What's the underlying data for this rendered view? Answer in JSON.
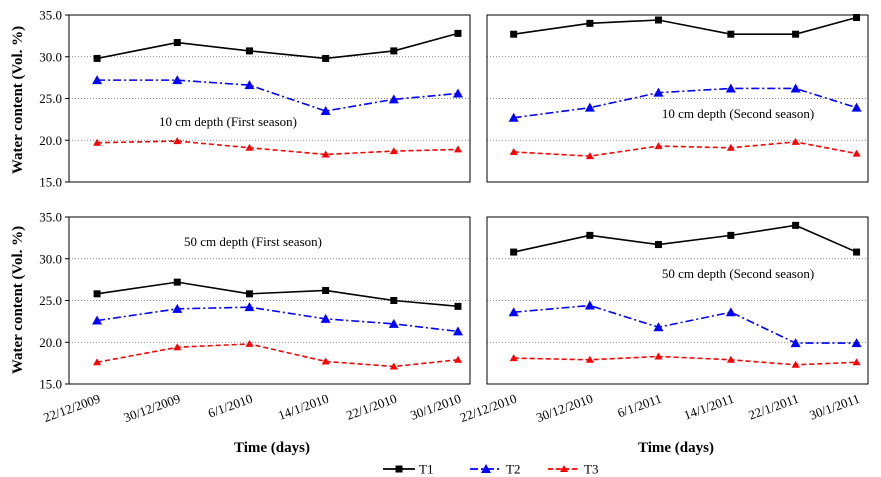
{
  "chart_data": [
    {
      "type": "line",
      "annotation": "10 cm depth (First season)",
      "ylim": [
        15,
        35
      ],
      "yticks": [
        "15.0",
        "20.0",
        "25.0",
        "30.0",
        "35.0"
      ],
      "x": [
        "22/12/2009",
        "30/12/2009",
        "6/1/2010",
        "14/1/2010",
        "22/1/2010",
        "30/1/2010"
      ],
      "series": [
        {
          "name": "T1",
          "values": [
            29.8,
            31.7,
            30.7,
            29.8,
            30.7,
            32.8
          ]
        },
        {
          "name": "T2",
          "values": [
            27.2,
            27.2,
            26.6,
            23.5,
            24.9,
            25.6
          ]
        },
        {
          "name": "T3",
          "values": [
            19.7,
            19.9,
            19.1,
            18.3,
            18.7,
            18.9
          ]
        }
      ]
    },
    {
      "type": "line",
      "annotation": "10 cm depth (Second season)",
      "ylim": [
        15,
        35
      ],
      "x": [
        "22/12/2010",
        "30/12/2010",
        "6/1/2011",
        "14/1/2011",
        "22/1/2011",
        "30/1/2011"
      ],
      "series": [
        {
          "name": "T1",
          "values": [
            32.7,
            34.0,
            34.4,
            32.7,
            32.7,
            34.7
          ]
        },
        {
          "name": "T2",
          "values": [
            22.7,
            23.9,
            25.7,
            26.2,
            26.2,
            23.9
          ]
        },
        {
          "name": "T3",
          "values": [
            18.6,
            18.1,
            19.3,
            19.1,
            19.8,
            18.4
          ]
        }
      ]
    },
    {
      "type": "line",
      "annotation": "50 cm depth (First season)",
      "ylim": [
        15,
        35
      ],
      "yticks": [
        "15.0",
        "20.0",
        "25.0",
        "30.0",
        "35.0"
      ],
      "x": [
        "22/12/2009",
        "30/12/2009",
        "6/1/2010",
        "14/1/2010",
        "22/1/2010",
        "30/1/2010"
      ],
      "series": [
        {
          "name": "T1",
          "values": [
            25.8,
            27.2,
            25.8,
            26.2,
            25.0,
            24.3
          ]
        },
        {
          "name": "T2",
          "values": [
            22.6,
            24.0,
            24.2,
            22.8,
            22.2,
            21.3
          ]
        },
        {
          "name": "T3",
          "values": [
            17.6,
            19.4,
            19.8,
            17.7,
            17.1,
            17.9
          ]
        }
      ]
    },
    {
      "type": "line",
      "annotation": "50 cm depth (Second season)",
      "ylim": [
        15,
        35
      ],
      "x": [
        "22/12/2010",
        "30/12/2010",
        "6/1/2011",
        "14/1/2011",
        "22/1/2011",
        "30/1/2011"
      ],
      "series": [
        {
          "name": "T1",
          "values": [
            30.8,
            32.8,
            31.7,
            32.8,
            34.0,
            30.8
          ]
        },
        {
          "name": "T2",
          "values": [
            23.6,
            24.4,
            21.8,
            23.6,
            19.9,
            19.9
          ]
        },
        {
          "name": "T3",
          "values": [
            18.1,
            17.9,
            18.3,
            17.9,
            17.3,
            17.6
          ]
        }
      ]
    }
  ],
  "ylabel": "Water content (Vol. %)",
  "xlabel": "Time (days)",
  "legend": [
    {
      "name": "T1",
      "color": "#000000",
      "marker": "square",
      "dash": "solid"
    },
    {
      "name": "T2",
      "color": "#0000ff",
      "marker": "circle",
      "dash": "dashdot"
    },
    {
      "name": "T3",
      "color": "#ff0000",
      "marker": "triangle",
      "dash": "dashed"
    }
  ],
  "colors": {
    "T1": "#000000",
    "T2": "#0000ff",
    "T3": "#ff0000"
  }
}
